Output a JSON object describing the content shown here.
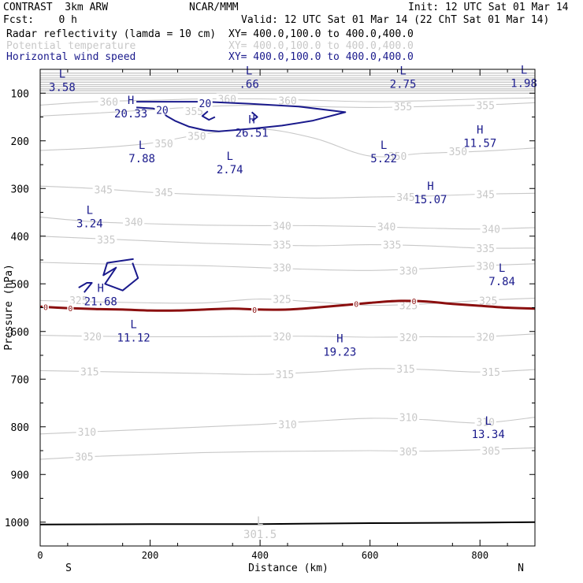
{
  "header": {
    "model": "CONTRAST  3km ARW",
    "org": "NCAR/MMM",
    "init": "Init: 12 UTC Sat 01 Mar 14",
    "fcst": "Fcst:    0 h",
    "valid": "Valid: 12 UTC Sat 01 Mar 14 (22 ChT Sat 01 Mar 14)",
    "fields": [
      {
        "name": "Radar reflectivity (lamda = 10 cm)",
        "xy": "XY= 400.0,100.0 to 400.0,400.0",
        "color": "#000000"
      },
      {
        "name": "Potential temperature",
        "xy": "XY= 400.0,100.0 to 400.0,400.0",
        "color": "#c8c8c8"
      },
      {
        "name": "Horizontal wind speed",
        "xy": "XY= 400.0,100.0 to 400.0,400.0",
        "color": "#1a1a8c"
      }
    ]
  },
  "chart_data": {
    "type": "contour-cross-section",
    "xlabel": "Distance (km)",
    "ylabel": "Pressure (hPa)",
    "xlim": [
      0,
      900
    ],
    "ylim": [
      1050,
      50
    ],
    "x_ticks": [
      0,
      200,
      400,
      600,
      800
    ],
    "y_ticks": [
      100,
      200,
      300,
      400,
      500,
      600,
      700,
      800,
      900,
      1000
    ],
    "end_labels": {
      "left": "S",
      "right": "N"
    },
    "theta_contours": [
      {
        "level": 305,
        "points": [
          [
            0,
            868
          ],
          [
            100,
            862
          ],
          [
            200,
            858
          ],
          [
            300,
            854
          ],
          [
            400,
            852
          ],
          [
            500,
            851
          ],
          [
            600,
            850
          ],
          [
            700,
            851
          ],
          [
            800,
            848
          ],
          [
            900,
            844
          ]
        ],
        "labels": [
          [
            80,
            862
          ],
          [
            670,
            852
          ],
          [
            820,
            850
          ]
        ]
      },
      {
        "level": 310,
        "points": [
          [
            0,
            815
          ],
          [
            100,
            810
          ],
          [
            200,
            805
          ],
          [
            300,
            800
          ],
          [
            400,
            795
          ],
          [
            500,
            788
          ],
          [
            600,
            782
          ],
          [
            700,
            785
          ],
          [
            800,
            792
          ],
          [
            900,
            780
          ]
        ],
        "labels": [
          [
            85,
            810
          ],
          [
            450,
            795
          ],
          [
            670,
            780
          ],
          [
            810,
            790
          ]
        ]
      },
      {
        "level": 315,
        "points": [
          [
            0,
            682
          ],
          [
            100,
            684
          ],
          [
            200,
            686
          ],
          [
            300,
            688
          ],
          [
            400,
            690
          ],
          [
            500,
            685
          ],
          [
            600,
            678
          ],
          [
            700,
            680
          ],
          [
            800,
            685
          ],
          [
            900,
            680
          ]
        ],
        "labels": [
          [
            90,
            684
          ],
          [
            445,
            690
          ],
          [
            665,
            678
          ],
          [
            820,
            685
          ]
        ]
      },
      {
        "level": 320,
        "points": [
          [
            0,
            608
          ],
          [
            100,
            610
          ],
          [
            200,
            611
          ],
          [
            300,
            611
          ],
          [
            400,
            610
          ],
          [
            500,
            610
          ],
          [
            600,
            612
          ],
          [
            700,
            611
          ],
          [
            800,
            611
          ],
          [
            900,
            605
          ]
        ],
        "labels": [
          [
            95,
            610
          ],
          [
            440,
            610
          ],
          [
            670,
            612
          ],
          [
            810,
            611
          ]
        ]
      },
      {
        "level": 325,
        "points": [
          [
            0,
            535
          ],
          [
            100,
            538
          ],
          [
            200,
            540
          ],
          [
            300,
            540
          ],
          [
            400,
            532
          ],
          [
            500,
            538
          ],
          [
            600,
            545
          ],
          [
            700,
            542
          ],
          [
            800,
            535
          ],
          [
            900,
            530
          ]
        ],
        "labels": [
          [
            70,
            534
          ],
          [
            440,
            532
          ],
          [
            670,
            545
          ],
          [
            815,
            535
          ]
        ]
      },
      {
        "level": 330,
        "points": [
          [
            0,
            455
          ],
          [
            100,
            458
          ],
          [
            200,
            460
          ],
          [
            300,
            462
          ],
          [
            400,
            466
          ],
          [
            500,
            470
          ],
          [
            600,
            472
          ],
          [
            700,
            468
          ],
          [
            800,
            462
          ],
          [
            900,
            458
          ]
        ],
        "labels": [
          [
            440,
            466
          ],
          [
            670,
            472
          ],
          [
            810,
            462
          ]
        ]
      },
      {
        "level": 335,
        "points": [
          [
            0,
            400
          ],
          [
            100,
            405
          ],
          [
            200,
            410
          ],
          [
            300,
            415
          ],
          [
            400,
            418
          ],
          [
            500,
            420
          ],
          [
            600,
            418
          ],
          [
            700,
            420
          ],
          [
            800,
            425
          ],
          [
            900,
            425
          ]
        ],
        "labels": [
          [
            120,
            407
          ],
          [
            440,
            418
          ],
          [
            640,
            418
          ],
          [
            810,
            425
          ]
        ]
      },
      {
        "level": 340,
        "points": [
          [
            0,
            360
          ],
          [
            100,
            370
          ],
          [
            200,
            374
          ],
          [
            300,
            377
          ],
          [
            400,
            378
          ],
          [
            500,
            378
          ],
          [
            600,
            380
          ],
          [
            700,
            383
          ],
          [
            800,
            385
          ],
          [
            900,
            382
          ]
        ],
        "labels": [
          [
            170,
            370
          ],
          [
            440,
            378
          ],
          [
            630,
            380
          ],
          [
            820,
            385
          ]
        ]
      },
      {
        "level": 345,
        "points": [
          [
            0,
            295
          ],
          [
            100,
            300
          ],
          [
            200,
            308
          ],
          [
            300,
            313
          ],
          [
            400,
            317
          ],
          [
            500,
            320
          ],
          [
            600,
            318
          ],
          [
            700,
            316
          ],
          [
            800,
            312
          ],
          [
            900,
            310
          ]
        ],
        "labels": [
          [
            115,
            302
          ],
          [
            225,
            308
          ],
          [
            665,
            318
          ],
          [
            810,
            312
          ]
        ]
      },
      {
        "level": 350,
        "points": [
          [
            0,
            220
          ],
          [
            100,
            215
          ],
          [
            200,
            205
          ],
          [
            300,
            185
          ],
          [
            400,
            175
          ],
          [
            500,
            195
          ],
          [
            600,
            232
          ],
          [
            700,
            226
          ],
          [
            800,
            222
          ],
          [
            900,
            215
          ]
        ],
        "labels": [
          [
            225,
            205
          ],
          [
            285,
            190
          ],
          [
            650,
            232
          ],
          [
            760,
            222
          ]
        ]
      },
      {
        "level": 355,
        "points": [
          [
            0,
            148
          ],
          [
            100,
            142
          ],
          [
            200,
            135
          ],
          [
            300,
            128
          ],
          [
            400,
            125
          ],
          [
            500,
            128
          ],
          [
            600,
            130
          ],
          [
            700,
            128
          ],
          [
            800,
            125
          ],
          [
            900,
            120
          ]
        ],
        "labels": [
          [
            280,
            138
          ],
          [
            660,
            128
          ],
          [
            810,
            125
          ]
        ]
      },
      {
        "level": 360,
        "points": [
          [
            0,
            125
          ],
          [
            100,
            118
          ],
          [
            200,
            115
          ],
          [
            300,
            112
          ],
          [
            400,
            112
          ],
          [
            500,
            115
          ],
          [
            600,
            118
          ],
          [
            700,
            116
          ],
          [
            800,
            112
          ],
          [
            900,
            110
          ]
        ],
        "labels": [
          [
            125,
            118
          ],
          [
            340,
            112
          ],
          [
            450,
            115
          ]
        ]
      }
    ],
    "upper_band_pressures": [
      58,
      63,
      68,
      72,
      77,
      82,
      86,
      91,
      95,
      100
    ],
    "wind_contours": [
      {
        "level": 20,
        "paths": [
          [
            [
              175,
              118
            ],
            [
              300,
              118
            ],
            [
              380,
              122
            ],
            [
              470,
              128
            ],
            [
              555,
              140
            ],
            [
              495,
              158
            ],
            [
              440,
              168
            ],
            [
              390,
              174
            ],
            [
              350,
              178
            ],
            [
              325,
              180
            ],
            [
              300,
              178
            ],
            [
              270,
              170
            ],
            [
              245,
              158
            ],
            [
              230,
              148
            ],
            [
              222,
              138
            ],
            [
              205,
              132
            ],
            [
              175,
              130
            ]
          ],
          [
            [
              305,
              138
            ],
            [
              295,
              148
            ],
            [
              307,
              156
            ],
            [
              318,
              150
            ]
          ],
          [
            [
              385,
              140
            ],
            [
              395,
              150
            ],
            [
              386,
              158
            ]
          ]
        ],
        "labels": [
          [
            300,
            121
          ],
          [
            222,
            135
          ]
        ]
      },
      {
        "level": 20,
        "paths": [
          [
            [
              170,
              448
            ],
            [
              122,
              456
            ],
            [
              115,
              482
            ],
            [
              138,
              466
            ],
            [
              118,
              500
            ],
            [
              150,
              514
            ],
            [
              178,
              488
            ],
            [
              168,
              456
            ]
          ],
          [
            [
              70,
              508
            ],
            [
              85,
              498
            ],
            [
              94,
              498
            ],
            [
              80,
              518
            ]
          ]
        ],
        "labels": []
      },
      {
        "level": 20,
        "paths": [],
        "labels": []
      }
    ],
    "reflectivity_contours": [
      {
        "level": 0,
        "points": [
          [
            0,
            548
          ],
          [
            50,
            551
          ],
          [
            100,
            553
          ],
          [
            150,
            554
          ],
          [
            200,
            556
          ],
          [
            250,
            556
          ],
          [
            300,
            554
          ],
          [
            350,
            552
          ],
          [
            400,
            554
          ],
          [
            450,
            554
          ],
          [
            500,
            550
          ],
          [
            550,
            545
          ],
          [
            600,
            540
          ],
          [
            650,
            536
          ],
          [
            700,
            537
          ],
          [
            750,
            542
          ],
          [
            800,
            546
          ],
          [
            850,
            550
          ],
          [
            900,
            552
          ]
        ],
        "labels": [
          [
            10,
            548
          ],
          [
            55,
            551
          ],
          [
            390,
            554
          ],
          [
            575,
            542
          ],
          [
            680,
            536
          ]
        ]
      }
    ],
    "surface": [
      [
        0,
        1005
      ],
      [
        200,
        1004
      ],
      [
        400,
        1004
      ],
      [
        600,
        1002
      ],
      [
        800,
        1001
      ],
      [
        900,
        1000
      ]
    ],
    "extrema": [
      {
        "type": "L",
        "value": "3.58",
        "x": 40,
        "p": 72,
        "color": "#1a1a8c"
      },
      {
        "type": "L",
        "value": ".66",
        "x": 380,
        "p": 66,
        "color": "#1a1a8c"
      },
      {
        "type": "L",
        "value": "2.75",
        "x": 660,
        "p": 66,
        "color": "#1a1a8c"
      },
      {
        "type": "L",
        "value": "1.98",
        "x": 880,
        "p": 64,
        "color": "#1a1a8c"
      },
      {
        "type": "H",
        "value": "20.33",
        "x": 165,
        "p": 128,
        "color": "#1a1a8c"
      },
      {
        "type": "H",
        "value": "26.51",
        "x": 385,
        "p": 168,
        "color": "#1a1a8c"
      },
      {
        "type": "H",
        "value": "11.57",
        "x": 800,
        "p": 190,
        "color": "#1a1a8c"
      },
      {
        "type": "L",
        "value": "7.88",
        "x": 185,
        "p": 222,
        "color": "#1a1a8c"
      },
      {
        "type": "L",
        "value": "2.74",
        "x": 345,
        "p": 245,
        "color": "#1a1a8c"
      },
      {
        "type": "L",
        "value": "5.22",
        "x": 625,
        "p": 222,
        "color": "#1a1a8c"
      },
      {
        "type": "H",
        "value": "15.07",
        "x": 710,
        "p": 308,
        "color": "#1a1a8c"
      },
      {
        "type": "L",
        "value": "3.24",
        "x": 90,
        "p": 358,
        "color": "#1a1a8c"
      },
      {
        "type": "L",
        "value": "7.84",
        "x": 840,
        "p": 480,
        "color": "#1a1a8c"
      },
      {
        "type": "H",
        "value": "21.68",
        "x": 110,
        "p": 522,
        "color": "#1a1a8c"
      },
      {
        "type": "L",
        "value": "11.12",
        "x": 170,
        "p": 598,
        "color": "#1a1a8c"
      },
      {
        "type": "H",
        "value": "19.23",
        "x": 545,
        "p": 628,
        "color": "#1a1a8c"
      },
      {
        "type": "L",
        "value": "13.34",
        "x": 815,
        "p": 800,
        "color": "#1a1a8c"
      },
      {
        "type": "L",
        "value": "301.5",
        "x": 400,
        "p": 1010,
        "color": "#c8c8c8"
      }
    ]
  }
}
